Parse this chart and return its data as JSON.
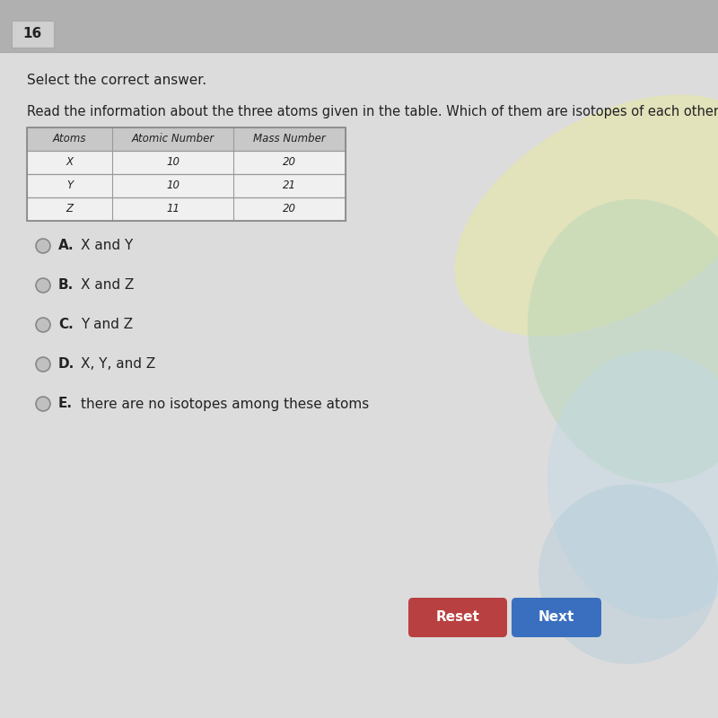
{
  "question_number": "16",
  "instruction": "Select the correct answer.",
  "question_line1": "Read the information about the three atoms given in the table. Which of them are isotopes",
  "question_line2": "of each other?",
  "question_bold_part": "in the table",
  "table_headers": [
    "Atoms",
    "Atomic Number",
    "Mass Number"
  ],
  "table_rows": [
    [
      "X",
      "10",
      "20"
    ],
    [
      "Y",
      "10",
      "21"
    ],
    [
      "Z",
      "11",
      "20"
    ]
  ],
  "options": [
    {
      "label": "A.",
      "text": "X and Y"
    },
    {
      "label": "B.",
      "text": "X and Z"
    },
    {
      "label": "C.",
      "text": "Y and Z"
    },
    {
      "label": "D.",
      "text": "X, Y, and Z"
    },
    {
      "label": "E.",
      "text": "there are no isotopes among these atoms"
    }
  ],
  "reset_button_color": "#b94040",
  "next_button_color": "#3a6fbf",
  "bg_color": "#c8c8c8",
  "content_bg": "#dcdcdc",
  "top_bar_color": "#b0b0b0",
  "num_box_color": "#d0d0d0",
  "table_header_bg": "#c8c8c8",
  "table_row_bg": "#f0f0f0",
  "radio_fill": "#c0c0c0",
  "radio_edge": "#888888",
  "font_color": "#222222",
  "blob_yellow": "#e8e8a0",
  "blob_green": "#b8d8b8",
  "blob_blue": "#a8c8d8",
  "blob_lightblue": "#c0d8e8"
}
